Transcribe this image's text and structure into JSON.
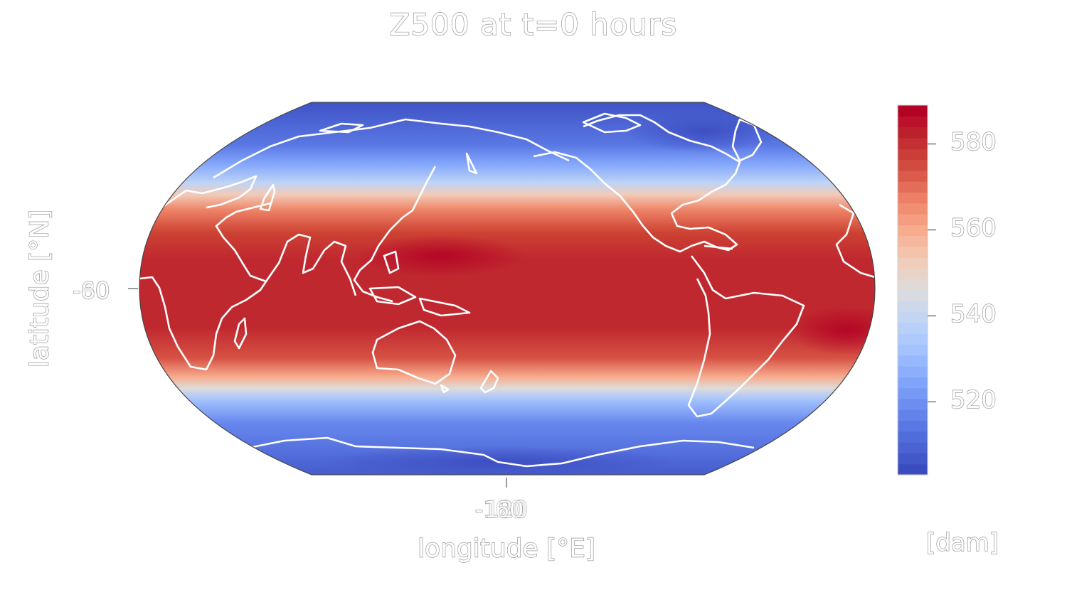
{
  "title": "Z500 at t=0 hours",
  "axes": {
    "xlabel": "longitude [°E]",
    "ylabel": "latitude [°N]",
    "y_tick_label": "-60",
    "y_tick_overlap": "80",
    "x_tick_labels": [
      "-180",
      "120",
      "60"
    ]
  },
  "colorbar": {
    "units": "[dam]",
    "range": [
      503,
      589
    ],
    "ticks": [
      "580",
      "560",
      "540",
      "520"
    ],
    "tick_values": [
      580,
      560,
      540,
      520
    ],
    "colormap": "coolwarm",
    "colors": [
      "#3b4cc0",
      "#4f6ad9",
      "#6788ee",
      "#84a7fc",
      "#a3c2fe",
      "#c0d4f5",
      "#dddcdc",
      "#f2cbb7",
      "#f7ac8e",
      "#ee8468",
      "#d65244",
      "#c12b30",
      "#b40426"
    ]
  },
  "map": {
    "projection": "Robinson",
    "field": "500 hPa geopotential height",
    "coastline_color": "#ffffff",
    "peak_regions": [
      "western Pacific warm pool",
      "tropical Atlantic near Brazil"
    ],
    "low_regions": [
      "Arctic",
      "Antarctic"
    ]
  }
}
